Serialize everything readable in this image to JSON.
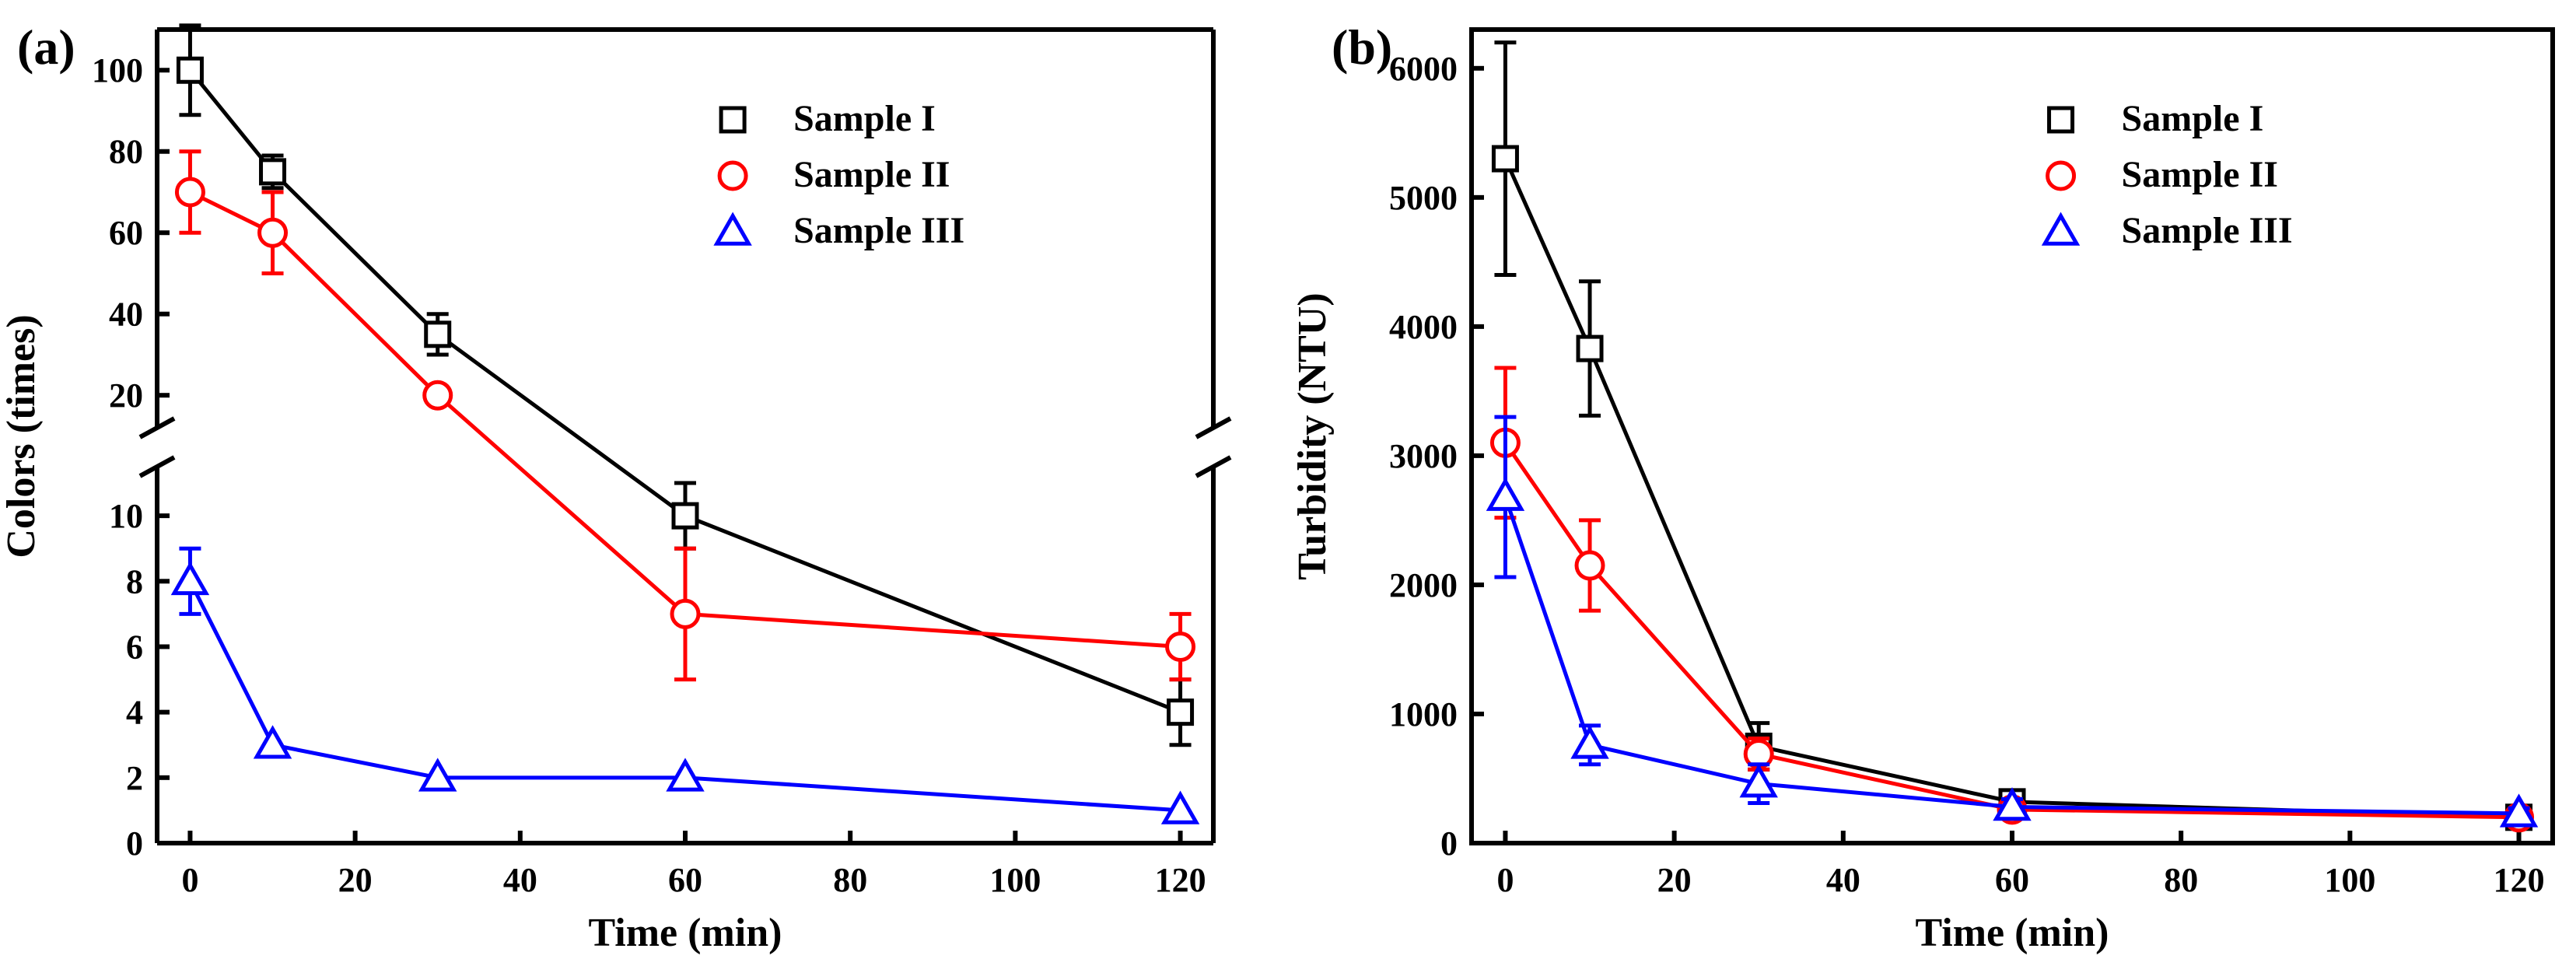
{
  "colors": {
    "Sample I": "#000000",
    "Sample II": "#ff0000",
    "Sample III": "#0000ff"
  },
  "chart_data": [
    {
      "type": "line",
      "panel_label": "(a)",
      "xlabel": "Time (min)",
      "ylabel": "Colors (times)",
      "x": [
        0,
        10,
        30,
        60,
        120
      ],
      "xlim": [
        -4,
        124
      ],
      "xticks": [
        0,
        20,
        40,
        60,
        80,
        100,
        120
      ],
      "y_axis_break": {
        "lower_range": [
          0,
          11.5
        ],
        "upper_range": [
          12,
          110
        ]
      },
      "ylim": [
        0,
        110
      ],
      "lower_yticks": [
        0,
        2,
        4,
        6,
        8,
        10
      ],
      "upper_yticks": [
        20,
        40,
        60,
        80,
        100
      ],
      "legend_position": "top-right",
      "series": [
        {
          "name": "Sample I",
          "marker": "square",
          "values": [
            100,
            75,
            35,
            10,
            4
          ],
          "errors": [
            11,
            4,
            5,
            1,
            1
          ]
        },
        {
          "name": "Sample II",
          "marker": "circle",
          "values": [
            70,
            60,
            20,
            7,
            6
          ],
          "errors": [
            10,
            10,
            1,
            2,
            1
          ]
        },
        {
          "name": "Sample III",
          "marker": "triangle",
          "values": [
            8,
            3,
            2,
            2,
            1
          ],
          "errors": [
            1,
            0,
            0,
            0,
            0
          ]
        }
      ]
    },
    {
      "type": "line",
      "panel_label": "(b)",
      "xlabel": "Time (min)",
      "ylabel": "Turbidity (NTU)",
      "x": [
        0,
        10,
        30,
        60,
        120
      ],
      "xlim": [
        -4,
        124
      ],
      "xticks": [
        0,
        20,
        40,
        60,
        80,
        100,
        120
      ],
      "ylim": [
        0,
        6300
      ],
      "yticks": [
        0,
        1000,
        2000,
        3000,
        4000,
        5000,
        6000
      ],
      "legend_position": "top-right",
      "series": [
        {
          "name": "Sample I",
          "marker": "square",
          "values": [
            5300,
            3830,
            750,
            320,
            200
          ],
          "errors": [
            900,
            520,
            180,
            60,
            40
          ]
        },
        {
          "name": "Sample II",
          "marker": "circle",
          "values": [
            3100,
            2150,
            690,
            260,
            200
          ],
          "errors": [
            580,
            350,
            120,
            50,
            30
          ]
        },
        {
          "name": "Sample III",
          "marker": "triangle",
          "values": [
            2680,
            760,
            460,
            280,
            230
          ],
          "errors": [
            620,
            150,
            150,
            60,
            40
          ]
        }
      ]
    }
  ]
}
